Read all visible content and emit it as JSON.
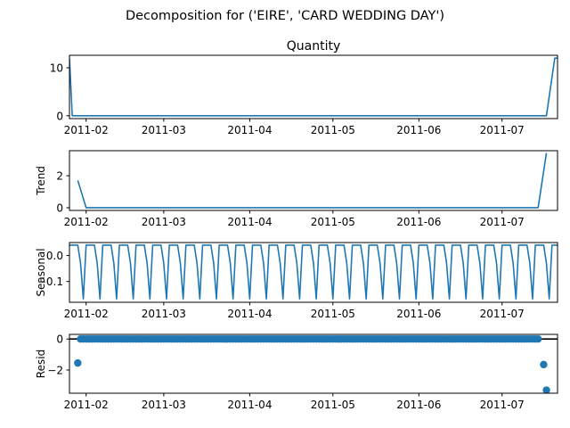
{
  "figure": {
    "suptitle": "Decomposition for ('EIRE', 'CARD WEDDING DAY')"
  },
  "chart_data": [
    {
      "type": "line",
      "title": "Quantity",
      "ylabel": "",
      "xlim": [
        "2011-01-26",
        "2011-07-21"
      ],
      "ylim": [
        -0.6,
        12.6
      ],
      "yticks": [
        0,
        10
      ],
      "xticks": [
        "2011-02",
        "2011-03",
        "2011-04",
        "2011-05",
        "2011-06",
        "2011-07"
      ],
      "series": [
        {
          "points": [
            [
              "2011-01-26",
              12
            ],
            [
              "2011-01-27",
              0
            ],
            [
              "2011-07-17",
              0
            ],
            [
              "2011-07-20",
              12
            ],
            [
              "2011-07-21",
              12
            ]
          ]
        }
      ]
    },
    {
      "type": "line",
      "title": "",
      "ylabel": "Trend",
      "xlim": [
        "2011-01-26",
        "2011-07-21"
      ],
      "ylim": [
        -0.17,
        3.57
      ],
      "yticks": [
        0,
        2
      ],
      "xticks": [
        "2011-02",
        "2011-03",
        "2011-04",
        "2011-05",
        "2011-06",
        "2011-07"
      ],
      "series": [
        {
          "points": [
            [
              "2011-01-29",
              1.71
            ],
            [
              "2011-02-01",
              0
            ],
            [
              "2011-07-14",
              0
            ],
            [
              "2011-07-17",
              3.43
            ]
          ]
        }
      ]
    },
    {
      "type": "line",
      "title": "",
      "ylabel": "Seasonal",
      "xlim": [
        "2011-01-26",
        "2011-07-21"
      ],
      "ylim": [
        -0.18,
        0.05
      ],
      "yticks": [
        -0.1,
        0.0
      ],
      "ytick_labels": [
        "−0.1",
        "0.0"
      ],
      "xticks": [
        "2011-02",
        "2011-03",
        "2011-04",
        "2011-05",
        "2011-06",
        "2011-07"
      ],
      "series": [
        {
          "period_days": 6,
          "pattern": [
            0.04,
            0.04,
            0.04,
            0.04,
            -0.03,
            -0.167
          ],
          "pattern_start": "2011-01-26"
        }
      ]
    },
    {
      "type": "scatter",
      "title": "",
      "ylabel": "Resid",
      "xlim": [
        "2011-01-26",
        "2011-07-21"
      ],
      "ylim": [
        -3.5,
        0.3
      ],
      "yticks": [
        -2,
        0
      ],
      "ytick_labels": [
        "−2",
        "0"
      ],
      "xticks": [
        "2011-02",
        "2011-03",
        "2011-04",
        "2011-05",
        "2011-06",
        "2011-07"
      ],
      "zero_line": true,
      "series": [
        {
          "dense_range": [
            "2011-01-30",
            "2011-07-14"
          ],
          "dense_value": 0,
          "outliers": [
            [
              "2011-01-29",
              -1.55
            ],
            [
              "2011-07-16",
              -1.65
            ],
            [
              "2011-07-17",
              -3.3
            ]
          ]
        }
      ]
    }
  ],
  "colors": {
    "line": "#1f77b4",
    "axis": "#000000"
  }
}
